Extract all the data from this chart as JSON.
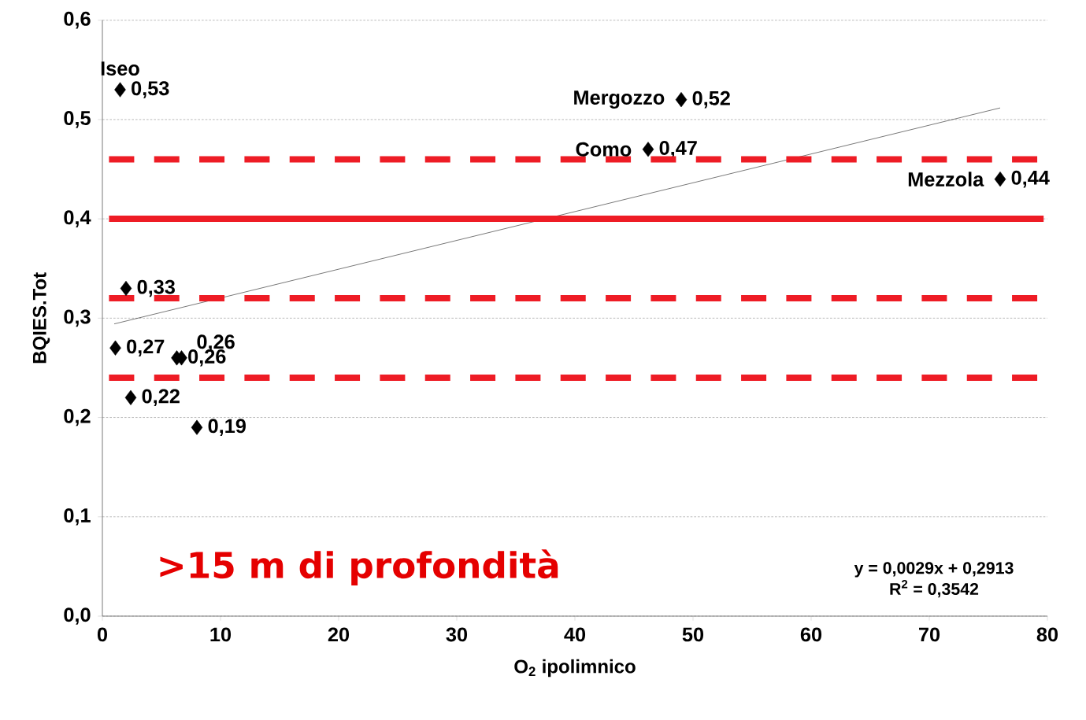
{
  "chart_data": {
    "type": "scatter",
    "xlabel": "O$_{2}$ ipolimnico",
    "ylabel": "BQIES.Tot",
    "xlim": [
      0,
      80
    ],
    "xticks": [
      0,
      10,
      20,
      30,
      40,
      50,
      60,
      70,
      80
    ],
    "ylim": [
      0,
      0.6
    ],
    "yticks": [
      {
        "value": 0,
        "label": "0,0"
      },
      {
        "value": 0.1,
        "label": "0,1"
      },
      {
        "value": 0.2,
        "label": "0,2"
      },
      {
        "value": 0.3,
        "label": "0,3"
      },
      {
        "value": 0.4,
        "label": "0,4"
      },
      {
        "value": 0.5,
        "label": "0,5"
      },
      {
        "value": 0.6,
        "label": "0,6"
      }
    ],
    "grid": "y",
    "series": [
      {
        "marker": "diamond",
        "color": "#000000",
        "x": [
          1.5,
          49,
          46.2,
          76,
          2,
          1.1,
          6.3,
          6.7,
          2.4,
          8
        ],
        "values": [
          0.53,
          0.52,
          0.47,
          0.44,
          0.33,
          0.27,
          0.26,
          0.26,
          0.22,
          0.19
        ],
        "value_labels": [
          "0,53",
          "0,52",
          "0,47",
          "0,44",
          "0,33",
          "0,27",
          "0,26",
          "0,26",
          "0,22",
          "0,19"
        ]
      },
      {
        "type": "line",
        "marker": "none",
        "color": "#000000",
        "x": [
          1,
          76
        ],
        "values": [
          0.2942,
          0.5117
        ]
      }
    ],
    "ref_lines": [
      {
        "axis": "y",
        "value": 0.46,
        "color": "#ee1c25",
        "line_style": "dashed"
      },
      {
        "axis": "y",
        "value": 0.4,
        "color": "#ee1c25",
        "line_style": "solid"
      },
      {
        "axis": "y",
        "value": 0.32,
        "color": "#ee1c25",
        "line_style": "dashed"
      },
      {
        "axis": "y",
        "value": 0.24,
        "color": "#ee1c25",
        "line_style": "dashed"
      }
    ],
    "annotations": [
      {
        "text": "Iseo",
        "x": 1.5,
        "y": 0.53
      },
      {
        "text": "Mergozzo",
        "x": 49,
        "y": 0.52
      },
      {
        "text": "Como",
        "x": 46.2,
        "y": 0.47
      },
      {
        "text": "Mezzola",
        "x": 76,
        "y": 0.44
      },
      ">15 m di profondità",
      "y = 0,0029x + 0,2913",
      "R$^{2}$ = 0,3542"
    ]
  }
}
